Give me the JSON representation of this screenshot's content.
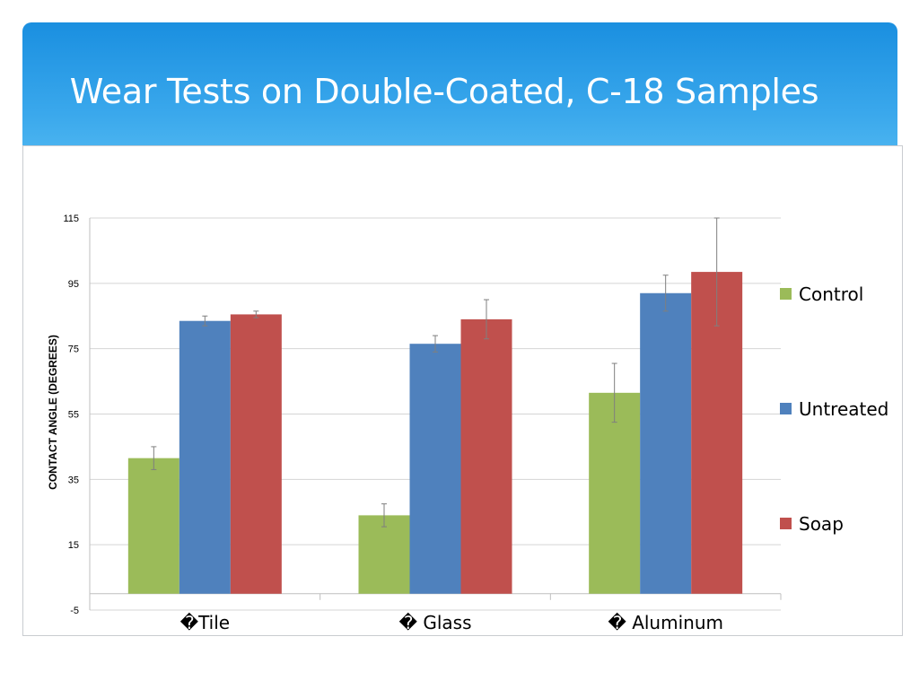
{
  "slide": {
    "title": "Wear Tests on Double-Coated, C-18 Samples"
  },
  "colors": {
    "banner_top": "#1a8fe0",
    "banner_bottom": "#5cc0f4",
    "Control": "#9bbb59",
    "Untreated": "#4f81bd",
    "Soap": "#c0504d",
    "grid": "#d4d4d4",
    "axis": "#bfbfbf",
    "error_bar": "#7f7f7f"
  },
  "chart_data": {
    "type": "bar",
    "categories": [
      "�Tile",
      "� Glass",
      "� Aluminum"
    ],
    "series": [
      {
        "name": "Control",
        "values": [
          41.5,
          24.0,
          61.5
        ],
        "errors": [
          3.5,
          3.5,
          9.0
        ]
      },
      {
        "name": "Untreated",
        "values": [
          83.5,
          76.5,
          92.0
        ],
        "errors": [
          1.5,
          2.5,
          5.5
        ]
      },
      {
        "name": "Soap",
        "values": [
          85.5,
          84.0,
          98.5
        ],
        "errors": [
          1.0,
          6.0,
          16.5
        ]
      }
    ],
    "title": "",
    "xlabel": "",
    "ylabel": "CONTACT ANGLE (DEGREES)",
    "ylim": [
      -5,
      115
    ],
    "yticks": [
      -5,
      15,
      35,
      55,
      75,
      95,
      115
    ],
    "baseline": 0,
    "grid": true,
    "legend": "right"
  }
}
